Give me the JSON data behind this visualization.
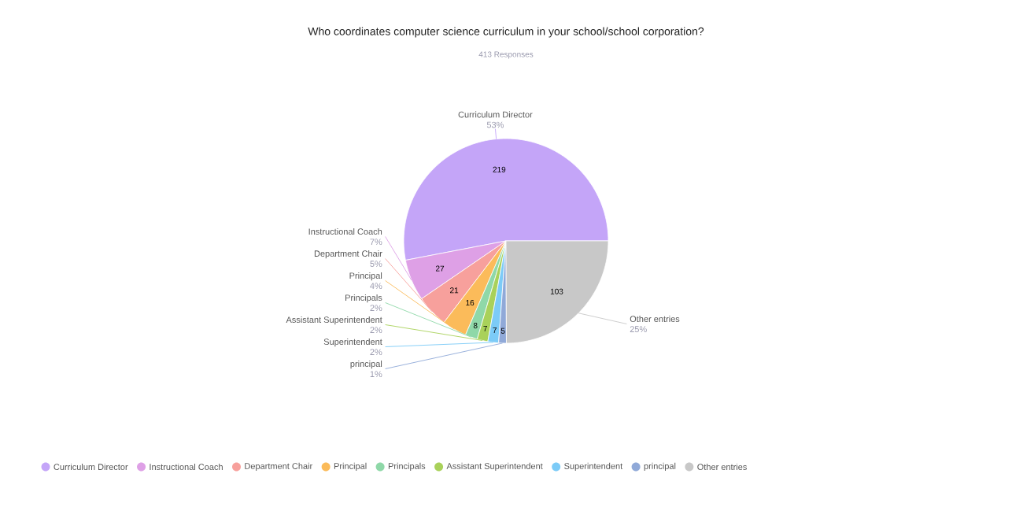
{
  "chart_data": {
    "type": "pie",
    "title": "Who coordinates computer science curriculum in your school/school corporation?",
    "subtitle": "413 Responses",
    "categories": [
      "Curriculum Director",
      "Instructional Coach",
      "Department Chair",
      "Principal",
      "Principals",
      "Assistant Superintendent",
      "Superintendent",
      "principal",
      "Other entries"
    ],
    "values": [
      219,
      27,
      21,
      16,
      8,
      7,
      7,
      5,
      103
    ],
    "colors": [
      "#c4a5f8",
      "#dea0e6",
      "#f7a09c",
      "#fbbb5a",
      "#8fd8a8",
      "#a9d15a",
      "#7ccbf7",
      "#90a9d8",
      "#c8c8c8"
    ],
    "annotations": [
      "53%",
      "7%",
      "5%",
      "4%",
      "2%",
      "2%",
      "2%",
      "1%",
      "25%"
    ],
    "data_labels": true,
    "legend": "bottom"
  }
}
